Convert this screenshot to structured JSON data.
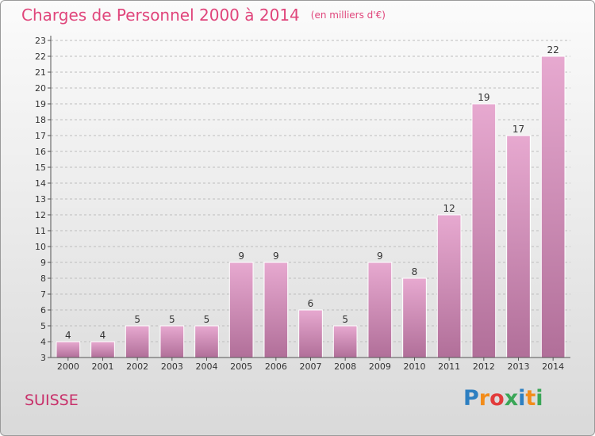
{
  "header": {
    "title": "Charges de Personnel 2000 à 2014",
    "subtitle": "(en milliers d'€)"
  },
  "footer": {
    "region": "SUISSE",
    "logo_letters": [
      "P",
      "r",
      "o",
      "x",
      "i",
      "t",
      "i"
    ],
    "logo_colors": [
      "#2d7fc1",
      "#f28c1a",
      "#e23b3b",
      "#3aa657",
      "#2d7fc1",
      "#f28c1a",
      "#3aa657"
    ]
  },
  "chart_data": {
    "type": "bar",
    "categories": [
      "2000",
      "2001",
      "2002",
      "2003",
      "2004",
      "2005",
      "2006",
      "2007",
      "2008",
      "2009",
      "2010",
      "2011",
      "2012",
      "2013",
      "2014"
    ],
    "values": [
      4,
      4,
      5,
      5,
      5,
      9,
      9,
      6,
      5,
      9,
      8,
      12,
      19,
      17,
      22
    ],
    "ylim": [
      3,
      23
    ],
    "yticks": [
      3,
      4,
      5,
      6,
      7,
      8,
      9,
      10,
      11,
      12,
      13,
      14,
      15,
      16,
      17,
      18,
      19,
      20,
      21,
      22,
      23
    ],
    "grid": true,
    "bar_color_top": "#e7a9d0",
    "bar_color_bottom": "#b16f99"
  }
}
